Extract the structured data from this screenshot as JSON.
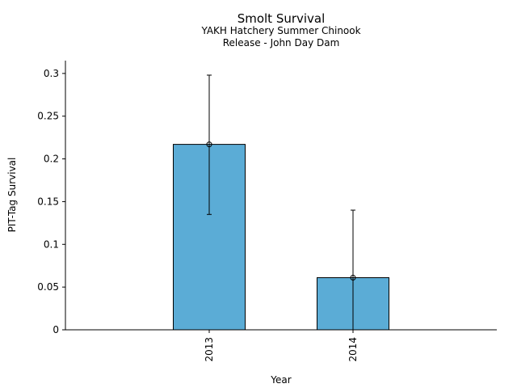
{
  "chart_data": {
    "type": "bar",
    "title": "Smolt Survival",
    "subtitle_lines": [
      "YAKH Hatchery Summer Chinook",
      "Release - John Day Dam"
    ],
    "xlabel": "Year",
    "ylabel": "PIT-Tag Survival",
    "categories": [
      "2013",
      "2014"
    ],
    "values": [
      0.217,
      0.061
    ],
    "error_low": [
      0.135,
      0.0
    ],
    "error_high": [
      0.298,
      0.14
    ],
    "ylim": [
      0,
      0.315
    ],
    "yticks": [
      {
        "value": 0,
        "label": "0"
      },
      {
        "value": 0.05,
        "label": "0.05"
      },
      {
        "value": 0.1,
        "label": "0.1"
      },
      {
        "value": 0.15,
        "label": "0.15"
      },
      {
        "value": 0.2,
        "label": "0.2"
      },
      {
        "value": 0.25,
        "label": "0.25"
      },
      {
        "value": 0.3,
        "label": "0.3"
      }
    ],
    "grid": false,
    "bar_color": "#5bacd6",
    "edge_color": "#000000"
  }
}
